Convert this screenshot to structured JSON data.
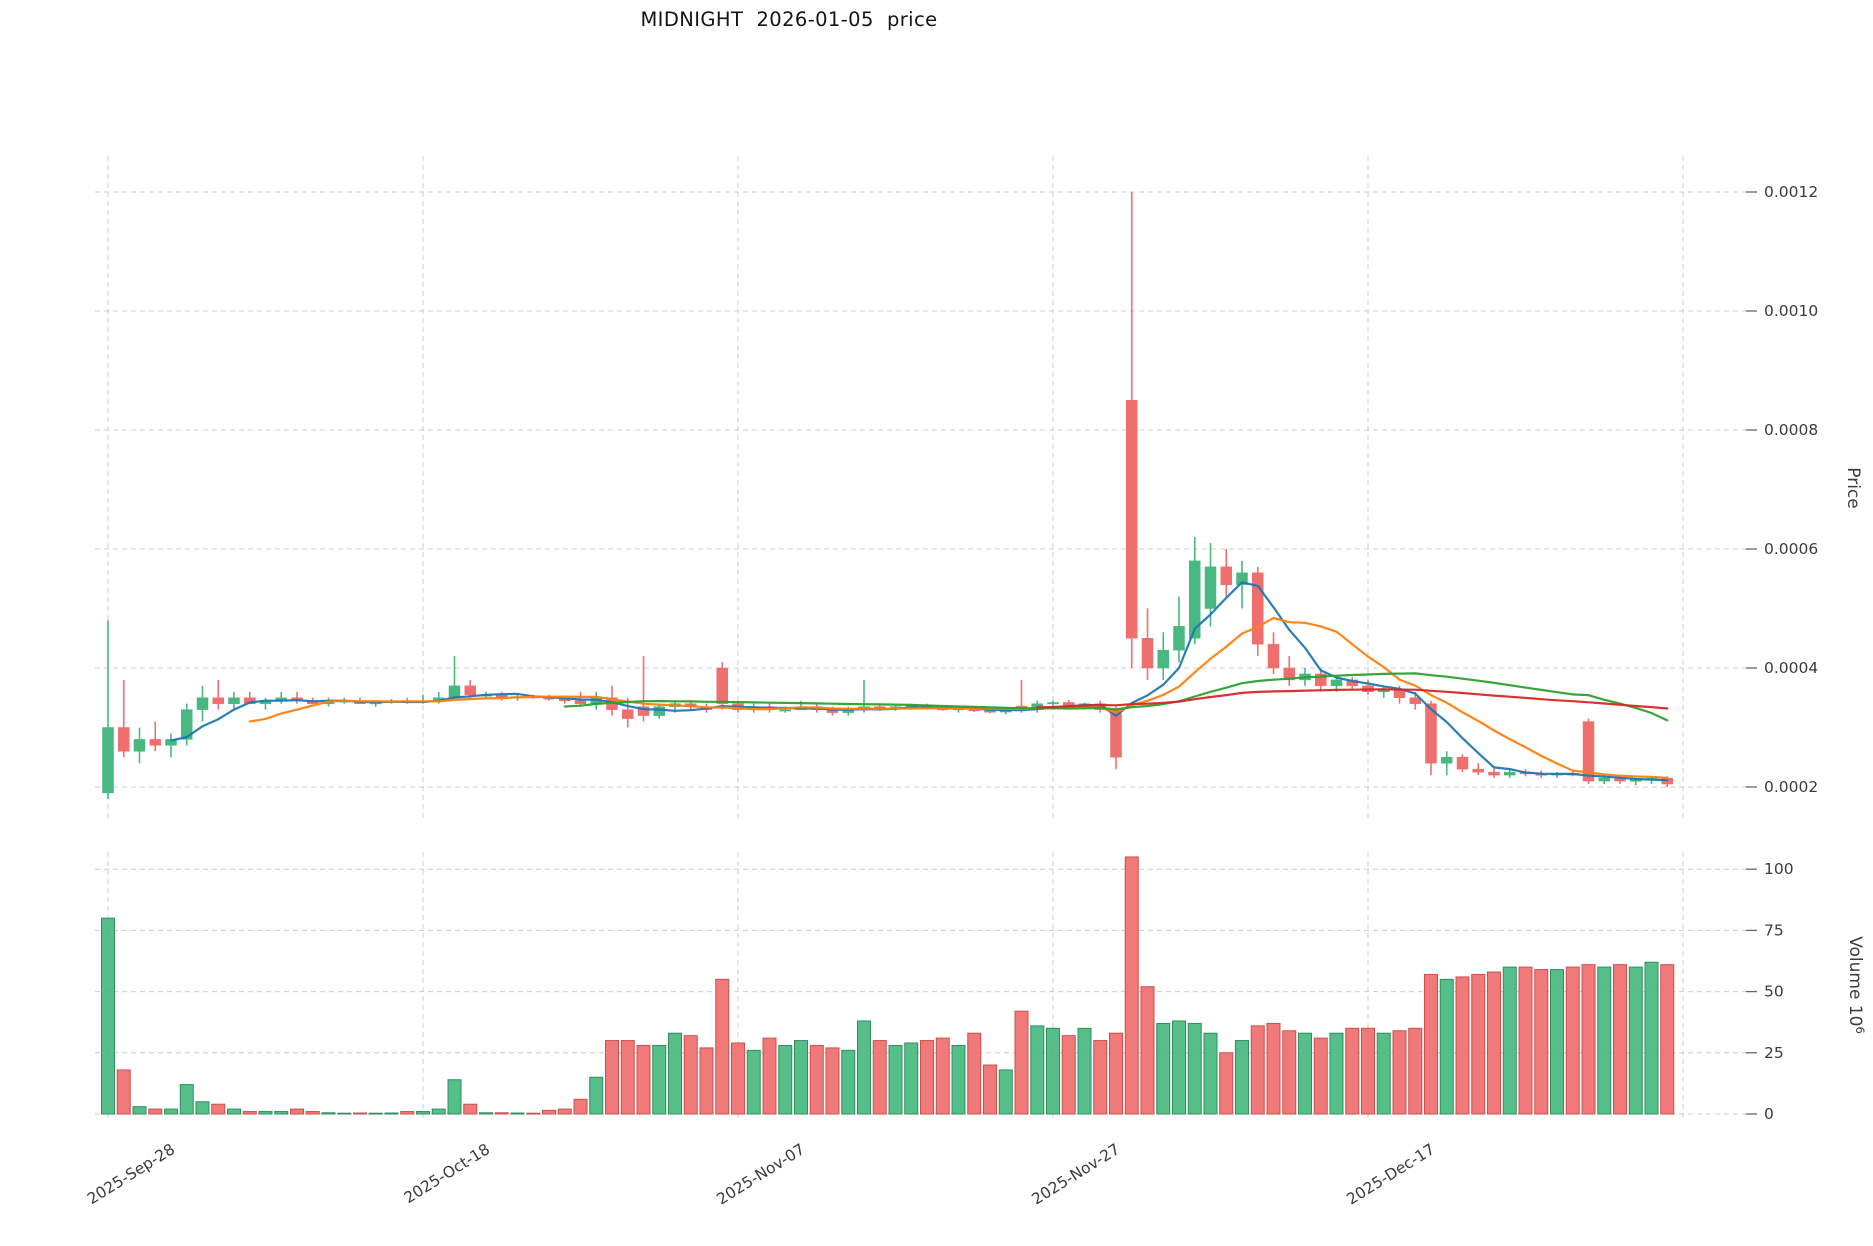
{
  "title": "MIDNIGHT  2026-01-05  price",
  "chart_data": {
    "type": "candlestick",
    "title": "MIDNIGHT  2026-01-05  price",
    "legend_position": "none",
    "grid": "dashed",
    "price_axis": {
      "label": "Price",
      "ticks": [
        0.0002,
        0.0004,
        0.0006,
        0.0008,
        0.001,
        0.0012
      ],
      "range": [
        0.00013,
        0.00126
      ]
    },
    "volume_axis": {
      "label": "Volume",
      "unit_base": "10",
      "unit_exponent": "6",
      "ticks": [
        0,
        25,
        50,
        75,
        100
      ]
    },
    "x_axis": {
      "tick_labels": [
        "2025-Sep-28",
        "2025-Oct-18",
        "2025-Nov-07",
        "2025-Nov-27",
        "2025-Dec-17"
      ],
      "tick_days": [
        0,
        20,
        40,
        60,
        80
      ],
      "extra_gridline_day": 100
    },
    "moving_averages": [
      {
        "window": 5,
        "color": "#1f77b4"
      },
      {
        "window": 10,
        "color": "#ff7f0e"
      },
      {
        "window": 30,
        "color": "#2ca02c"
      },
      {
        "window": 60,
        "color": "#d62728"
      }
    ],
    "colors": {
      "up": "#47b87f",
      "down": "#ef6f6f",
      "up_edge": "#2f8f63",
      "down_edge": "#cc4f4f",
      "grid": "#cccccc",
      "tick_text": "#3c3c3c",
      "tick_mark": "#666666"
    },
    "ohlcv_columns": [
      "date",
      "open",
      "high",
      "low",
      "close",
      "volume_millions"
    ],
    "ohlcv": [
      [
        "2025-09-28",
        0.00019,
        0.00048,
        0.00018,
        0.0003,
        80
      ],
      [
        "2025-09-29",
        0.0003,
        0.00038,
        0.00025,
        0.00026,
        18
      ],
      [
        "2025-09-30",
        0.00026,
        0.0003,
        0.00024,
        0.00028,
        3
      ],
      [
        "2025-10-01",
        0.00028,
        0.00031,
        0.00026,
        0.00027,
        2
      ],
      [
        "2025-10-02",
        0.00027,
        0.00029,
        0.00025,
        0.00028,
        2
      ],
      [
        "2025-10-03",
        0.00028,
        0.00034,
        0.00027,
        0.00033,
        12
      ],
      [
        "2025-10-04",
        0.00033,
        0.00037,
        0.00031,
        0.00035,
        5
      ],
      [
        "2025-10-05",
        0.00035,
        0.00038,
        0.00033,
        0.00034,
        4
      ],
      [
        "2025-10-06",
        0.00034,
        0.00036,
        0.00033,
        0.00035,
        2
      ],
      [
        "2025-10-07",
        0.00035,
        0.00036,
        0.00034,
        0.00034,
        1
      ],
      [
        "2025-10-08",
        0.00034,
        0.00035,
        0.00033,
        0.000345,
        1
      ],
      [
        "2025-10-09",
        0.000345,
        0.00036,
        0.00034,
        0.00035,
        1
      ],
      [
        "2025-10-10",
        0.00035,
        0.00036,
        0.00034,
        0.000345,
        2
      ],
      [
        "2025-10-11",
        0.000345,
        0.00035,
        0.00034,
        0.00034,
        1
      ],
      [
        "2025-10-12",
        0.00034,
        0.00035,
        0.000335,
        0.000345,
        0.5
      ],
      [
        "2025-10-13",
        0.000345,
        0.00035,
        0.00034,
        0.000345,
        0.3
      ],
      [
        "2025-10-14",
        0.000345,
        0.00035,
        0.00034,
        0.00034,
        0.4
      ],
      [
        "2025-10-15",
        0.00034,
        0.000345,
        0.000335,
        0.000342,
        0.3
      ],
      [
        "2025-10-16",
        0.000342,
        0.000348,
        0.00034,
        0.000345,
        0.4
      ],
      [
        "2025-10-17",
        0.000345,
        0.00035,
        0.00034,
        0.000342,
        1
      ],
      [
        "2025-10-18",
        0.000342,
        0.000355,
        0.00034,
        0.000345,
        1
      ],
      [
        "2025-10-19",
        0.000345,
        0.00036,
        0.00034,
        0.00035,
        2
      ],
      [
        "2025-10-20",
        0.00035,
        0.00042,
        0.000345,
        0.00037,
        14
      ],
      [
        "2025-10-21",
        0.00037,
        0.00038,
        0.00035,
        0.000355,
        4
      ],
      [
        "2025-10-22",
        0.000355,
        0.00036,
        0.00035,
        0.000355,
        0.5
      ],
      [
        "2025-10-23",
        0.000355,
        0.00036,
        0.000345,
        0.00035,
        0.5
      ],
      [
        "2025-10-24",
        0.00035,
        0.000355,
        0.000345,
        0.000352,
        0.4
      ],
      [
        "2025-10-25",
        0.000352,
        0.000355,
        0.000348,
        0.00035,
        0.3
      ],
      [
        "2025-10-26",
        0.00035,
        0.000355,
        0.000345,
        0.000348,
        1.5
      ],
      [
        "2025-10-27",
        0.000348,
        0.00035,
        0.00034,
        0.000345,
        2
      ],
      [
        "2025-10-28",
        0.000345,
        0.00036,
        0.000335,
        0.00034,
        6
      ],
      [
        "2025-10-29",
        0.00034,
        0.00036,
        0.00033,
        0.00035,
        15
      ],
      [
        "2025-10-30",
        0.00035,
        0.00037,
        0.00032,
        0.00033,
        30
      ],
      [
        "2025-10-31",
        0.00033,
        0.00035,
        0.0003,
        0.000315,
        30
      ],
      [
        "2025-11-01",
        0.000335,
        0.00042,
        0.00031,
        0.00032,
        28
      ],
      [
        "2025-11-02",
        0.00032,
        0.00034,
        0.000315,
        0.000335,
        28
      ],
      [
        "2025-11-03",
        0.000335,
        0.000345,
        0.000325,
        0.00034,
        33
      ],
      [
        "2025-11-04",
        0.00034,
        0.000345,
        0.00033,
        0.000335,
        32
      ],
      [
        "2025-11-05",
        0.000335,
        0.00034,
        0.000325,
        0.00033,
        27
      ],
      [
        "2025-11-06",
        0.0004,
        0.00041,
        0.00033,
        0.00034,
        55
      ],
      [
        "2025-11-07",
        0.00034,
        0.000345,
        0.000325,
        0.00033,
        29
      ],
      [
        "2025-11-08",
        0.00033,
        0.00034,
        0.000325,
        0.000335,
        26
      ],
      [
        "2025-11-09",
        0.000335,
        0.00034,
        0.000325,
        0.00033,
        31
      ],
      [
        "2025-11-10",
        0.00033,
        0.000335,
        0.000325,
        0.00033,
        28
      ],
      [
        "2025-11-11",
        0.00033,
        0.000345,
        0.00033,
        0.000335,
        30
      ],
      [
        "2025-11-12",
        0.000335,
        0.00034,
        0.000325,
        0.00033,
        28
      ],
      [
        "2025-11-13",
        0.00033,
        0.000335,
        0.00032,
        0.000325,
        27
      ],
      [
        "2025-11-14",
        0.000325,
        0.000335,
        0.00032,
        0.00033,
        26
      ],
      [
        "2025-11-15",
        0.00033,
        0.00038,
        0.000325,
        0.000335,
        38
      ],
      [
        "2025-11-16",
        0.000335,
        0.00034,
        0.000328,
        0.000332,
        30
      ],
      [
        "2025-11-17",
        0.000332,
        0.000338,
        0.000328,
        0.000335,
        28
      ],
      [
        "2025-11-18",
        0.000335,
        0.00034,
        0.00033,
        0.000338,
        29
      ],
      [
        "2025-11-19",
        0.000338,
        0.00034,
        0.00033,
        0.000332,
        30
      ],
      [
        "2025-11-20",
        0.000332,
        0.000336,
        0.000328,
        0.00033,
        31
      ],
      [
        "2025-11-21",
        0.00033,
        0.000335,
        0.000325,
        0.000332,
        28
      ],
      [
        "2025-11-22",
        0.000332,
        0.000336,
        0.000326,
        0.000328,
        33
      ],
      [
        "2025-11-23",
        0.000328,
        0.000332,
        0.000324,
        0.000326,
        20
      ],
      [
        "2025-11-24",
        0.000326,
        0.000332,
        0.000322,
        0.00033,
        18
      ],
      [
        "2025-11-25",
        0.000336,
        0.00038,
        0.000325,
        0.00033,
        42
      ],
      [
        "2025-11-26",
        0.00033,
        0.000345,
        0.000325,
        0.00034,
        36
      ],
      [
        "2025-11-27",
        0.00034,
        0.000345,
        0.00033,
        0.000342,
        35
      ],
      [
        "2025-11-28",
        0.000342,
        0.000346,
        0.000332,
        0.000336,
        32
      ],
      [
        "2025-11-29",
        0.000336,
        0.000342,
        0.00033,
        0.00034,
        35
      ],
      [
        "2025-11-30",
        0.00034,
        0.000345,
        0.000325,
        0.00033,
        30
      ],
      [
        "2025-12-01",
        0.00033,
        0.000335,
        0.00023,
        0.00025,
        33
      ],
      [
        "2025-12-02",
        0.00085,
        0.0012,
        0.0004,
        0.00045,
        105
      ],
      [
        "2025-12-03",
        0.00045,
        0.0005,
        0.00038,
        0.0004,
        52
      ],
      [
        "2025-12-04",
        0.0004,
        0.00046,
        0.00038,
        0.00043,
        37
      ],
      [
        "2025-12-05",
        0.00043,
        0.00052,
        0.00041,
        0.00047,
        38
      ],
      [
        "2025-12-06",
        0.00045,
        0.00062,
        0.00044,
        0.00058,
        37
      ],
      [
        "2025-12-07",
        0.0005,
        0.00061,
        0.00047,
        0.00057,
        33
      ],
      [
        "2025-12-08",
        0.00057,
        0.0006,
        0.00052,
        0.00054,
        25
      ],
      [
        "2025-12-09",
        0.00054,
        0.00058,
        0.0005,
        0.00056,
        30
      ],
      [
        "2025-12-10",
        0.00056,
        0.00057,
        0.00042,
        0.00044,
        36
      ],
      [
        "2025-12-11",
        0.00044,
        0.00046,
        0.00039,
        0.0004,
        37
      ],
      [
        "2025-12-12",
        0.0004,
        0.00042,
        0.00037,
        0.00038,
        34
      ],
      [
        "2025-12-13",
        0.00038,
        0.0004,
        0.00037,
        0.00039,
        33
      ],
      [
        "2025-12-14",
        0.00039,
        0.0004,
        0.00036,
        0.00037,
        31
      ],
      [
        "2025-12-15",
        0.00037,
        0.000385,
        0.00036,
        0.00038,
        33
      ],
      [
        "2025-12-16",
        0.00038,
        0.000385,
        0.000365,
        0.00037,
        35
      ],
      [
        "2025-12-17",
        0.00037,
        0.00038,
        0.000355,
        0.00036,
        35
      ],
      [
        "2025-12-18",
        0.00036,
        0.00037,
        0.00035,
        0.000365,
        33
      ],
      [
        "2025-12-19",
        0.000365,
        0.00037,
        0.00034,
        0.00035,
        34
      ],
      [
        "2025-12-20",
        0.00035,
        0.00036,
        0.00033,
        0.00034,
        35
      ],
      [
        "2025-12-21",
        0.00034,
        0.000345,
        0.00022,
        0.00024,
        57
      ],
      [
        "2025-12-22",
        0.00024,
        0.00026,
        0.00022,
        0.00025,
        55
      ],
      [
        "2025-12-23",
        0.00025,
        0.000255,
        0.000225,
        0.00023,
        56
      ],
      [
        "2025-12-24",
        0.00023,
        0.00024,
        0.00022,
        0.000225,
        57
      ],
      [
        "2025-12-25",
        0.000225,
        0.000235,
        0.000215,
        0.00022,
        58
      ],
      [
        "2025-12-26",
        0.00022,
        0.00023,
        0.000215,
        0.000225,
        60
      ],
      [
        "2025-12-27",
        0.000225,
        0.00023,
        0.000218,
        0.000222,
        60
      ],
      [
        "2025-12-28",
        0.000222,
        0.000228,
        0.000215,
        0.00022,
        59
      ],
      [
        "2025-12-29",
        0.00022,
        0.000225,
        0.000215,
        0.000223,
        59
      ],
      [
        "2025-12-30",
        0.000223,
        0.000226,
        0.000218,
        0.00022,
        60
      ],
      [
        "2025-12-31",
        0.00031,
        0.000315,
        0.000205,
        0.00021,
        61
      ],
      [
        "2026-01-01",
        0.00021,
        0.00022,
        0.000205,
        0.000215,
        60
      ],
      [
        "2026-01-02",
        0.000215,
        0.00022,
        0.000205,
        0.00021,
        61
      ],
      [
        "2026-01-03",
        0.00021,
        0.000215,
        0.000203,
        0.000212,
        60
      ],
      [
        "2026-01-04",
        0.000212,
        0.000218,
        0.000205,
        0.000215,
        62
      ],
      [
        "2026-01-05",
        0.000215,
        0.000218,
        0.0002,
        0.000205,
        61
      ]
    ]
  }
}
